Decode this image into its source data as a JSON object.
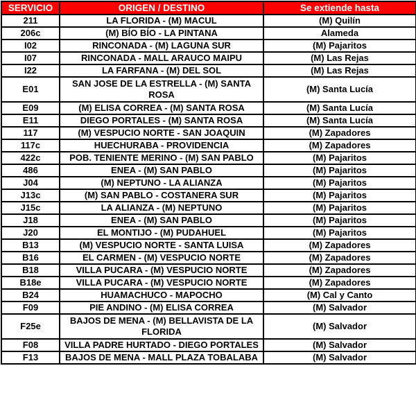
{
  "table": {
    "columns": [
      "SERVICIO",
      "ORIGEN / DESTINO",
      "Se extiende hasta"
    ],
    "rows": [
      {
        "service": "211",
        "route": "LA FLORIDA - (M) MACUL",
        "extends_to": "(M) Quilín"
      },
      {
        "service": "206c",
        "route": "(M) BÍO BÍO - LA PINTANA",
        "extends_to": "Alameda"
      },
      {
        "service": "I02",
        "route": "RINCONADA - (M) LAGUNA SUR",
        "extends_to": "(M) Pajaritos"
      },
      {
        "service": "I07",
        "route": "RINCONADA - MALL ARAUCO MAIPU",
        "extends_to": "(M) Las Rejas"
      },
      {
        "service": "I22",
        "route": "LA FARFANA - (M) DEL SOL",
        "extends_to": "(M) Las Rejas"
      },
      {
        "service": "E01",
        "route": "SAN JOSE DE LA ESTRELLA - (M) SANTA\nROSA",
        "extends_to": "(M) Santa Lucía",
        "tall": true
      },
      {
        "service": "E09",
        "route": "(M) ELISA CORREA - (M) SANTA ROSA",
        "extends_to": "(M) Santa Lucía"
      },
      {
        "service": "E11",
        "route": "DIEGO PORTALES - (M) SANTA ROSA",
        "extends_to": "(M) Santa Lucía"
      },
      {
        "service": "117",
        "route": "(M) VESPUCIO NORTE - SAN JOAQUIN",
        "extends_to": "(M) Zapadores"
      },
      {
        "service": "117c",
        "route": "HUECHURABA - PROVIDENCIA",
        "extends_to": "(M) Zapadores"
      },
      {
        "service": "422c",
        "route": "POB. TENIENTE MERINO -  (M) SAN PABLO",
        "extends_to": "(M) Pajaritos"
      },
      {
        "service": "486",
        "route": "ENEA - (M) SAN PABLO",
        "extends_to": "(M) Pajaritos"
      },
      {
        "service": "J04",
        "route": "(M) NEPTUNO - LA ALIANZA",
        "extends_to": "(M) Pajaritos"
      },
      {
        "service": "J13c",
        "route": "(M) SAN PABLO - COSTANERA SUR",
        "extends_to": "(M) Pajaritos"
      },
      {
        "service": "J15c",
        "route": "LA ALIANZA - (M) NEPTUNO",
        "extends_to": "(M) Pajaritos"
      },
      {
        "service": "J18",
        "route": "ENEA - (M) SAN PABLO",
        "extends_to": "(M) Pajaritos"
      },
      {
        "service": "J20",
        "route": "EL MONTIJO - (M) PUDAHUEL",
        "extends_to": "(M) Pajaritos"
      },
      {
        "service": "B13",
        "route": "(M) VESPUCIO NORTE - SANTA LUISA",
        "extends_to": "(M) Zapadores"
      },
      {
        "service": "B16",
        "route": "EL CARMEN - (M) VESPUCIO NORTE",
        "extends_to": "(M) Zapadores"
      },
      {
        "service": "B18",
        "route": "VILLA PUCARA - (M) VESPUCIO NORTE",
        "extends_to": "(M) Zapadores"
      },
      {
        "service": "B18e",
        "route": "VILLA PUCARA - (M) VESPUCIO NORTE",
        "extends_to": "(M) Zapadores"
      },
      {
        "service": "B24",
        "route": "HUAMACHUCO - MAPOCHO",
        "extends_to": "(M) Cal y Canto"
      },
      {
        "service": "F09",
        "route": "PIE ANDINO - (M) ELISA CORREA",
        "extends_to": "(M) Salvador"
      },
      {
        "service": "F25e",
        "route": "BAJOS DE MENA - (M) BELLAVISTA DE LA\nFLORIDA",
        "extends_to": "(M) Salvador",
        "tall": true
      },
      {
        "service": "F08",
        "route": "VILLA PADRE HURTADO - DIEGO PORTALES",
        "extends_to": "(M) Salvador"
      },
      {
        "service": "F13",
        "route": "BAJOS DE MENA - MALL PLAZA TOBALABA",
        "extends_to": "(M) Salvador"
      }
    ]
  },
  "colors": {
    "header_bg": "#fe0000",
    "header_text": "#ffffff",
    "border": "#000000",
    "row_text": "#000000",
    "row_bg": "#ffffff"
  }
}
